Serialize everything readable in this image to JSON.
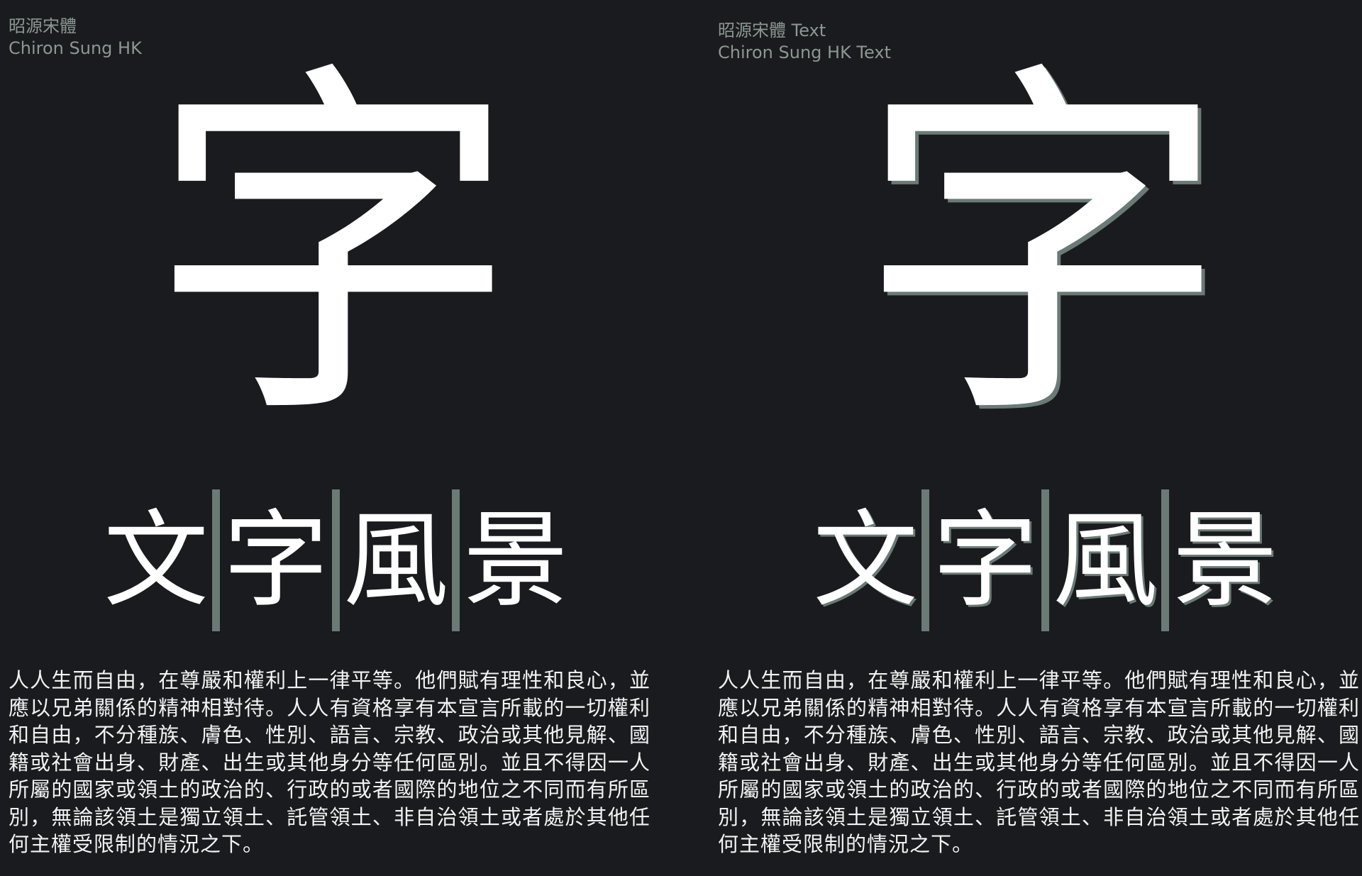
{
  "panels": [
    {
      "label_zh": "昭源宋體",
      "label_en": "Chiron Sung HK",
      "big_glyph": "字",
      "word": [
        "文",
        "字",
        "風",
        "景"
      ],
      "paragraph": "人人生而自由，在尊嚴和權利上一律平等。他們賦有理性和良心，並應以兄弟關係的精神相對待。人人有資格享有本宣言所載的一切權利和自由，不分種族、膚色、性別、語言、宗教、政治或其他見解、國籍或社會出身、財產、出生或其他身分等任何區別。並且不得因一人所屬的國家或領土的政治的、行政的或者國際的地位之不同而有所區別，無論該領土是獨立領土、託管領土、非自治領土或者處於其他任何主權受限制的情況之下。"
    },
    {
      "label_zh": "昭源宋體 Text",
      "label_en": "Chiron Sung HK Text",
      "big_glyph": "字",
      "word": [
        "文",
        "字",
        "風",
        "景"
      ],
      "paragraph": "人人生而自由，在尊嚴和權利上一律平等。他們賦有理性和良心，並應以兄弟關係的精神相對待。人人有資格享有本宣言所載的一切權利和自由，不分種族、膚色、性別、語言、宗教、政治或其他見解、國籍或社會出身、財產、出生或其他身分等任何區別。並且不得因一人所屬的國家或領土的政治的、行政的或者國際的地位之不同而有所區別，無論該領土是獨立領土、託管領土、非自治領土或者處於其他任何主權受限制的情況之下。"
    }
  ],
  "colors": {
    "background": "#1a1b1e",
    "label": "#8c9791",
    "glyph": "#ffffff",
    "accent": "#6a7a74",
    "text": "#f2f2f2"
  }
}
